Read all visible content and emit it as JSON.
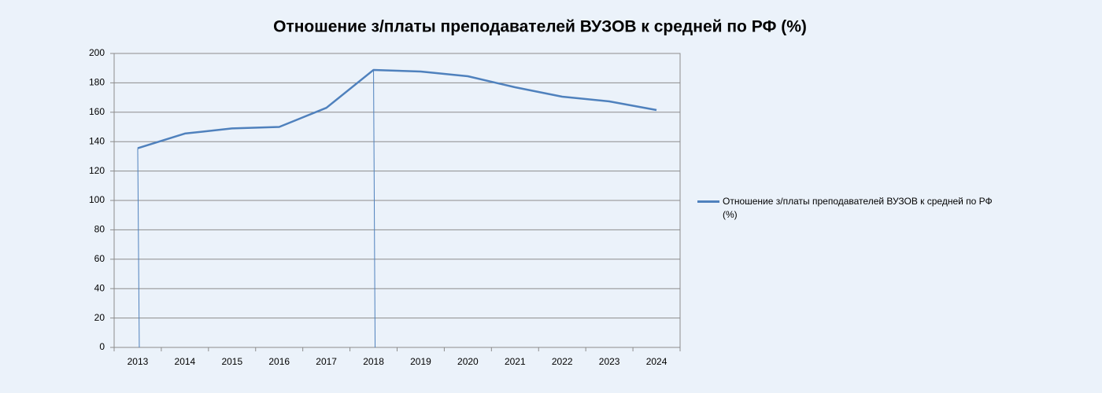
{
  "chart_data": {
    "type": "line",
    "title": "Отношение з/платы преподавателей ВУЗОВ к средней по РФ (%)",
    "categories": [
      "2013",
      "2014",
      "2015",
      "2016",
      "2017",
      "2018",
      "2019",
      "2020",
      "2021",
      "2022",
      "2023",
      "2024"
    ],
    "series": [
      {
        "name": "Отношение з/платы преподавателей ВУЗОВ к средней по РФ (%)",
        "color": "#4f81bd",
        "values": [
          135.5,
          145.5,
          149,
          150,
          163,
          188.8,
          187.7,
          184.5,
          177,
          170.6,
          167.4,
          161.5
        ]
      }
    ],
    "ylim": [
      0,
      200
    ],
    "yticks": [
      0,
      20,
      40,
      60,
      80,
      100,
      120,
      140,
      160,
      180,
      200
    ],
    "grid": true,
    "legend": "right"
  }
}
